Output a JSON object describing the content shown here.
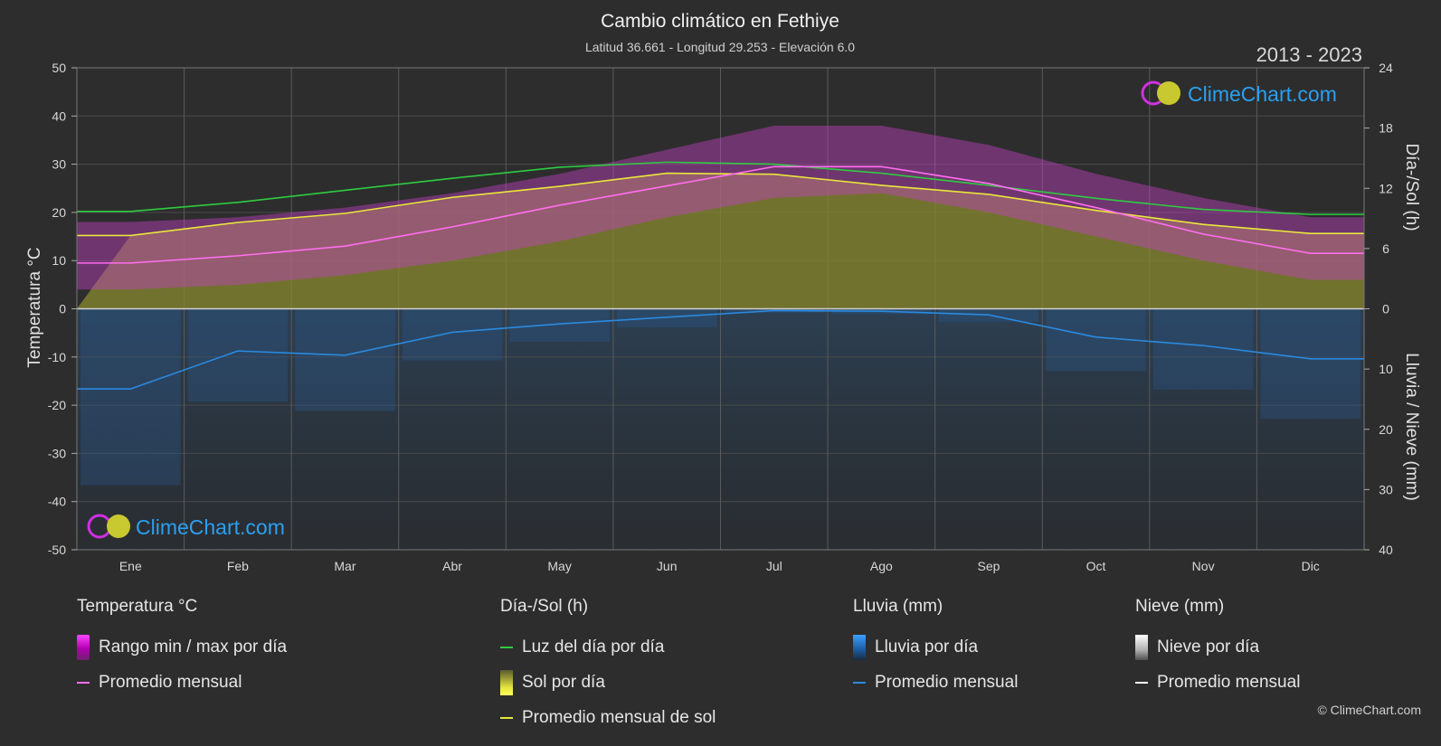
{
  "header": {
    "title": "Cambio climático en Fethiye",
    "subtitle": "Latitud 36.661 - Longitud 29.253 - Elevación 6.0",
    "year_range": "2013 - 2023"
  },
  "watermark": "ClimeChart.com",
  "copyright": "© ClimeChart.com",
  "chart_data": {
    "type": "line",
    "categories": [
      "Ene",
      "Feb",
      "Mar",
      "Abr",
      "May",
      "Jun",
      "Jul",
      "Ago",
      "Sep",
      "Oct",
      "Nov",
      "Dic"
    ],
    "left_axis": {
      "label": "Temperatura °C",
      "min": -50,
      "max": 50,
      "ticks": [
        50,
        40,
        30,
        20,
        10,
        0,
        -10,
        -20,
        -30,
        -40,
        -50
      ]
    },
    "right_axis_top": {
      "label": "Día-/Sol (h)",
      "min": 0,
      "max": 24,
      "ticks": [
        24,
        18,
        12,
        6,
        0
      ]
    },
    "right_axis_bottom": {
      "label": "Lluvia / Nieve (mm)",
      "min": 0,
      "max": 40,
      "ticks": [
        0,
        10,
        20,
        30,
        40
      ]
    },
    "grid": true,
    "series": [
      {
        "name": "Luz del día por día",
        "axis": "day_sun_h",
        "color": "#2ecc40",
        "values": [
          9.7,
          10.6,
          11.8,
          13.0,
          14.1,
          14.6,
          14.4,
          13.5,
          12.3,
          11.0,
          9.9,
          9.4
        ]
      },
      {
        "name": "Promedio mensual de sol",
        "axis": "day_sun_h",
        "color": "#e8e83a",
        "values": [
          7.3,
          8.6,
          9.5,
          11.1,
          12.2,
          13.5,
          13.4,
          12.3,
          11.4,
          9.8,
          8.4,
          7.5
        ]
      },
      {
        "name": "Promedio mensual",
        "group": "Temperatura °C",
        "axis": "temperature_c",
        "color": "#ff6ef0",
        "values": [
          9.5,
          11.0,
          13.0,
          17.0,
          21.5,
          25.5,
          29.5,
          29.5,
          26.0,
          21.0,
          15.5,
          11.5
        ]
      },
      {
        "name": "Promedio mensual",
        "group": "Lluvia (mm)",
        "axis": "rain_mm",
        "color": "#2a8ae0",
        "values": [
          13.3,
          7.0,
          7.7,
          3.9,
          2.5,
          1.4,
          0.3,
          0.4,
          1.0,
          4.7,
          6.1,
          8.3
        ]
      }
    ],
    "ranges": {
      "temp_max": [
        18,
        19,
        21,
        24,
        28,
        33,
        38,
        38,
        34,
        28,
        23,
        19
      ],
      "temp_min": [
        4,
        5,
        7,
        10,
        14,
        19,
        23,
        24,
        20,
        15,
        10,
        6
      ]
    }
  },
  "legend": {
    "groups": [
      {
        "title": "Temperatura °C",
        "items": [
          {
            "type": "range",
            "label": "Rango min / max por día"
          },
          {
            "type": "line",
            "color": "#ff6ef0",
            "label": "Promedio mensual"
          }
        ]
      },
      {
        "title": "Día-/Sol (h)",
        "items": [
          {
            "type": "line",
            "color": "#2ecc40",
            "label": "Luz del día por día"
          },
          {
            "type": "sun",
            "label": "Sol por día"
          },
          {
            "type": "line",
            "color": "#e8e83a",
            "label": "Promedio mensual de sol"
          }
        ]
      },
      {
        "title": "Lluvia (mm)",
        "items": [
          {
            "type": "rain",
            "label": "Lluvia por día"
          },
          {
            "type": "line",
            "color": "#2a8ae0",
            "label": "Promedio mensual"
          }
        ]
      },
      {
        "title": "Nieve (mm)",
        "items": [
          {
            "type": "snow",
            "label": "Nieve por día"
          },
          {
            "type": "line",
            "color": "#ffffff",
            "label": "Promedio mensual"
          }
        ]
      }
    ]
  }
}
